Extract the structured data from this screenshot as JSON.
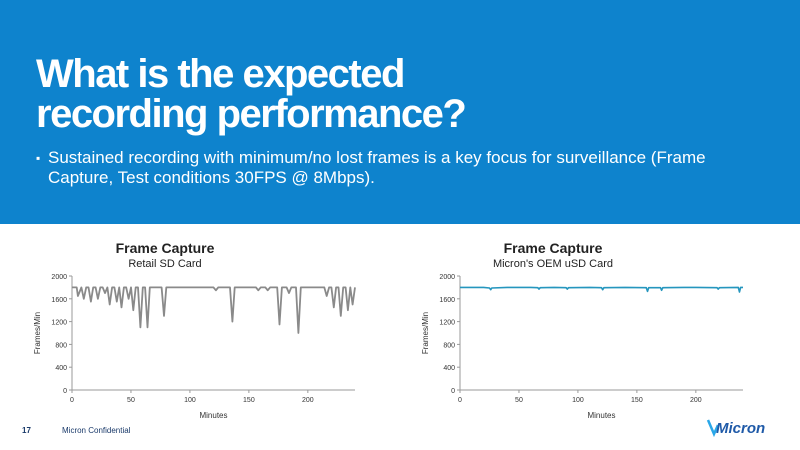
{
  "slide": {
    "title_line1": "What is the expected",
    "title_line2": "recording performance?",
    "bullet_mark": "▪",
    "bullet_text": "Sustained recording with minimum/no lost frames is a key focus for surveillance (Frame Capture, Test conditions 30FPS @ 8Mbps).",
    "page_number": "17",
    "confidential": "Micron Confidential",
    "logo_text": "Micron",
    "colors": {
      "banner": "#0e83cd",
      "retail_line": "#8a8a8a",
      "oem_line": "#2596be"
    }
  },
  "chart_data": [
    {
      "type": "line",
      "title": "Frame Capture",
      "subtitle": "Retail SD Card",
      "xlabel": "Minutes",
      "ylabel": "Frames/Min",
      "xlim": [
        0,
        240
      ],
      "ylim": [
        0,
        2000
      ],
      "xticks": [
        0,
        50,
        100,
        150,
        200
      ],
      "yticks": [
        0,
        400,
        800,
        1200,
        1600,
        2000
      ],
      "grid": false,
      "series": [
        {
          "x": [
            0,
            4,
            5,
            8,
            10,
            12,
            14,
            16,
            18,
            20,
            22,
            24,
            26,
            28,
            30,
            32,
            34,
            36,
            38,
            40,
            42,
            44,
            46,
            48,
            50,
            52,
            54,
            56,
            58,
            60,
            62,
            64,
            66,
            68,
            70,
            72,
            74,
            76,
            78,
            80,
            82,
            84,
            86,
            88,
            90,
            92,
            94,
            96,
            98,
            100,
            102,
            104,
            106,
            108,
            110,
            112,
            114,
            116,
            118,
            120,
            122,
            124,
            126,
            128,
            130,
            132,
            134,
            136,
            138,
            140,
            142,
            144,
            146,
            148,
            150,
            152,
            154,
            156,
            158,
            160,
            162,
            164,
            166,
            168,
            170,
            172,
            174,
            176,
            178,
            180,
            182,
            184,
            186,
            188,
            190,
            192,
            194,
            196,
            198,
            200,
            202,
            204,
            206,
            208,
            210,
            212,
            214,
            216,
            218,
            220,
            222,
            224,
            226,
            228,
            230,
            232,
            234,
            236,
            238,
            240
          ],
          "values": [
            1800,
            1800,
            1650,
            1800,
            1600,
            1800,
            1800,
            1550,
            1800,
            1800,
            1600,
            1800,
            1800,
            1700,
            1800,
            1500,
            1800,
            1800,
            1550,
            1800,
            1450,
            1800,
            1800,
            1600,
            1800,
            1400,
            1800,
            1800,
            1100,
            1800,
            1800,
            1100,
            1800,
            1800,
            1800,
            1800,
            1800,
            1800,
            1300,
            1800,
            1800,
            1800,
            1800,
            1800,
            1800,
            1800,
            1800,
            1800,
            1800,
            1800,
            1800,
            1800,
            1800,
            1800,
            1800,
            1800,
            1800,
            1800,
            1800,
            1800,
            1750,
            1800,
            1800,
            1800,
            1800,
            1800,
            1800,
            1200,
            1800,
            1800,
            1800,
            1800,
            1800,
            1800,
            1800,
            1800,
            1800,
            1800,
            1750,
            1800,
            1800,
            1800,
            1750,
            1800,
            1800,
            1800,
            1800,
            1150,
            1800,
            1800,
            1800,
            1700,
            1800,
            1800,
            1800,
            1000,
            1800,
            1800,
            1800,
            1800,
            1800,
            1800,
            1800,
            1800,
            1800,
            1800,
            1800,
            1650,
            1800,
            1800,
            1450,
            1800,
            1800,
            1300,
            1800,
            1800,
            1400,
            1800,
            1500,
            1800
          ]
        }
      ]
    },
    {
      "type": "line",
      "title": "Frame Capture",
      "subtitle": "Micron's OEM uSD Card",
      "xlabel": "Minutes",
      "ylabel": "Frames/Min",
      "xlim": [
        0,
        240
      ],
      "ylim": [
        0,
        2000
      ],
      "xticks": [
        0,
        50,
        100,
        150,
        200
      ],
      "yticks": [
        0,
        400,
        800,
        1200,
        1600,
        2000
      ],
      "grid": false,
      "series": [
        {
          "x": [
            0,
            10,
            20,
            25,
            26,
            27,
            40,
            60,
            66,
            67,
            68,
            80,
            90,
            91,
            92,
            110,
            120,
            121,
            122,
            140,
            158,
            159,
            160,
            170,
            171,
            172,
            190,
            200,
            218,
            219,
            220,
            236,
            237,
            238,
            240
          ],
          "values": [
            1800,
            1800,
            1800,
            1790,
            1760,
            1790,
            1800,
            1800,
            1795,
            1770,
            1795,
            1800,
            1795,
            1770,
            1795,
            1800,
            1795,
            1760,
            1795,
            1800,
            1795,
            1730,
            1795,
            1795,
            1750,
            1795,
            1800,
            1800,
            1795,
            1770,
            1795,
            1800,
            1720,
            1800,
            1800
          ]
        }
      ]
    }
  ]
}
